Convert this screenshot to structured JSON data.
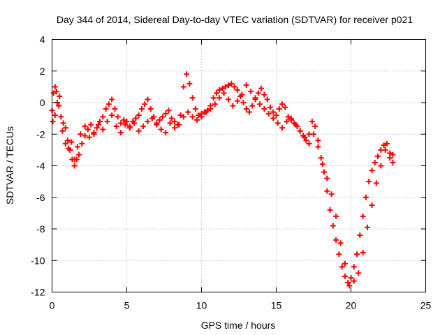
{
  "chart_data": {
    "type": "scatter",
    "title": "Day 344 of 2014, Sidereal Day-to-day VTEC variation (SDTVAR) for receiver p021",
    "xlabel": "GPS time / hours",
    "ylabel": "SDTVAR / TECUs",
    "xlim": [
      0,
      25
    ],
    "ylim": [
      -12,
      4
    ],
    "xticks": [
      0,
      5,
      10,
      15,
      20,
      25
    ],
    "yticks": [
      -12,
      -10,
      -8,
      -6,
      -4,
      -2,
      0,
      2,
      4
    ],
    "grid": true,
    "marker": "plus",
    "color": "#ff0000",
    "series": [
      {
        "name": "SDTVAR",
        "x": [
          0.0,
          0.1,
          0.2,
          0.3,
          0.45,
          0.6,
          0.75,
          0.9,
          1.05,
          1.2,
          1.35,
          1.5,
          1.65,
          1.8,
          2.0,
          2.2,
          2.4,
          2.6,
          2.8,
          3.0,
          3.2,
          3.4,
          3.6,
          3.8,
          4.0,
          4.2,
          4.4,
          4.6,
          4.8,
          5.0,
          5.2,
          5.4,
          5.6,
          5.8,
          6.0,
          6.2,
          6.4,
          6.6,
          6.8,
          7.0,
          7.2,
          7.4,
          7.6,
          7.8,
          8.0,
          8.2,
          8.4,
          8.6,
          8.8,
          9.0,
          9.2,
          9.4,
          9.6,
          9.8,
          10.0,
          10.2,
          10.4,
          10.6,
          10.8,
          11.0,
          11.2,
          11.4,
          11.6,
          11.8,
          12.0,
          12.2,
          12.4,
          12.6,
          12.8,
          13.0,
          13.2,
          13.4,
          13.6,
          13.8,
          14.0,
          14.2,
          14.4,
          14.6,
          14.8,
          15.0,
          15.2,
          15.4,
          15.6,
          15.8,
          16.0,
          16.2,
          16.4,
          16.6,
          16.8,
          17.0,
          17.2,
          17.4,
          17.6,
          17.8,
          18.0,
          18.2,
          18.4,
          18.6,
          18.8,
          19.0,
          19.2,
          19.4,
          19.6,
          19.8,
          20.0,
          20.2,
          20.4,
          20.6,
          20.8,
          21.0,
          21.2,
          21.4,
          21.6,
          21.8,
          22.0,
          22.2,
          22.4,
          22.6,
          22.8,
          0.05,
          0.2,
          0.35,
          0.5,
          0.7,
          0.9,
          1.1,
          1.3,
          1.5,
          1.7,
          1.9,
          2.2,
          2.5,
          2.8,
          3.1,
          3.4,
          3.7,
          4.0,
          4.3,
          4.6,
          4.9,
          5.2,
          5.5,
          5.8,
          6.1,
          6.4,
          6.7,
          7.0,
          7.3,
          7.6,
          7.9,
          8.2,
          8.5,
          8.8,
          9.1,
          9.4,
          9.7,
          10.0,
          10.3,
          10.6,
          10.9,
          11.2,
          11.5,
          11.8,
          12.1,
          12.4,
          12.7,
          13.0,
          13.3,
          13.6,
          13.9,
          14.2,
          14.5,
          14.8,
          15.1,
          15.4,
          15.7,
          16.0,
          16.3,
          16.6,
          16.9,
          17.2,
          17.5,
          17.8,
          18.1,
          18.4,
          18.7,
          19.0,
          19.3,
          19.6,
          19.9,
          20.2,
          20.5,
          20.8,
          21.1,
          21.4,
          21.7,
          22.0,
          22.3,
          22.6,
          22.8
        ],
        "y": [
          -0.5,
          0.6,
          1.0,
          0.7,
          -0.2,
          -0.9,
          -1.3,
          -1.6,
          -2.4,
          -3.0,
          -3.6,
          -4.0,
          -3.6,
          -3.3,
          -2.6,
          -2.1,
          -1.7,
          -1.4,
          -1.9,
          -1.6,
          -1.2,
          -0.9,
          -0.4,
          -0.1,
          0.2,
          -0.4,
          -0.9,
          -1.3,
          -1.1,
          -1.2,
          -1.5,
          -1.2,
          -1.0,
          -0.8,
          -0.4,
          -0.1,
          0.2,
          -0.4,
          -0.9,
          -1.3,
          -1.1,
          -0.9,
          -0.7,
          -0.5,
          -1.0,
          -1.2,
          -1.4,
          -0.8,
          1.0,
          1.8,
          1.2,
          0.3,
          -0.4,
          -0.8,
          -0.7,
          -0.6,
          -0.5,
          -0.2,
          0.3,
          0.6,
          0.8,
          0.9,
          1.0,
          1.1,
          1.2,
          1.0,
          0.8,
          0.4,
          0.0,
          -0.4,
          -0.6,
          -0.2,
          0.2,
          0.6,
          0.9,
          0.5,
          0.2,
          -0.3,
          -0.6,
          -0.8,
          -0.4,
          -0.1,
          -0.3,
          -0.9,
          -1.1,
          -1.3,
          -1.5,
          -1.8,
          -2.1,
          -2.4,
          -2.0,
          -1.2,
          -1.5,
          -2.4,
          -3.5,
          -4.4,
          -5.6,
          -6.8,
          -7.8,
          -8.7,
          -9.6,
          -10.4,
          -11.0,
          -11.4,
          -11.1,
          -10.4,
          -9.6,
          -8.4,
          -7.2,
          -6.0,
          -5.0,
          -4.3,
          -3.8,
          -3.4,
          -3.0,
          -2.7,
          -2.6,
          -3.2,
          -3.8,
          -1.2,
          -0.8,
          0.0,
          0.4,
          -1.8,
          -2.6,
          -2.9,
          -2.5,
          -3.6,
          -2.8,
          -2.0,
          -1.5,
          -2.2,
          -2.0,
          -1.4,
          -1.7,
          -1.2,
          -0.8,
          -1.5,
          -1.9,
          -1.4,
          -1.6,
          -1.3,
          -1.8,
          -1.5,
          -1.2,
          -1.0,
          -1.4,
          -1.7,
          -1.9,
          -1.3,
          -1.6,
          -1.4,
          -0.9,
          -0.6,
          -0.9,
          -1.1,
          -0.9,
          -0.6,
          -0.4,
          -0.1,
          0.3,
          0.6,
          0.2,
          -0.2,
          0.1,
          0.5,
          1.1,
          0.7,
          0.3,
          -0.1,
          -0.4,
          -0.7,
          -1.0,
          -1.3,
          -1.6,
          -1.2,
          -1.0,
          -1.4,
          -1.8,
          -2.2,
          -2.6,
          -2.0,
          -2.8,
          -3.9,
          -4.8,
          -5.8,
          -7.2,
          -8.9,
          -10.2,
          -11.6,
          -11.3,
          -10.8,
          -9.5,
          -7.9,
          -6.5,
          -5.1,
          -4.0,
          -3.0,
          -3.5,
          -3.3
        ]
      }
    ]
  }
}
